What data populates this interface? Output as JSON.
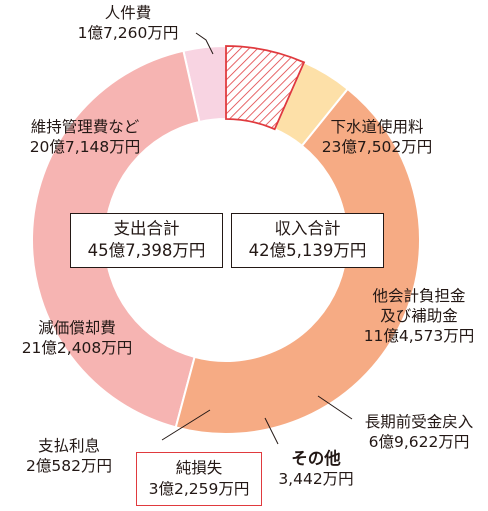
{
  "chart_data": {
    "type": "pie",
    "style": "donut",
    "colors_note": "income segments on right, expenditure segments on left",
    "income": [
      {
        "name": "下水道使用料",
        "value_label": "23億7,502万円",
        "value": 237502,
        "color": "#c8e6f8"
      },
      {
        "name_lines": [
          "他会計負担金",
          "及び補助金"
        ],
        "value_label": "11億4,573万円",
        "value": 114573,
        "color": "#aab4dc"
      },
      {
        "name": "長期前受金戻入",
        "value_label": "6億9,622万円",
        "value": 69622,
        "color": "#b0e0e4"
      },
      {
        "name": "その他",
        "value_label": "3,442万円",
        "value": 3442,
        "color": "#9d9fc8"
      }
    ],
    "expenditure": [
      {
        "name": "人件費",
        "value_label": "1億7,260万円",
        "value": 17260,
        "color": "#f8d4e2"
      },
      {
        "name": "維持管理費など",
        "value_label": "20億7,148万円",
        "value": 207148,
        "color": "#f6b4b2"
      },
      {
        "name": "減価償却費",
        "value_label": "21億2,408万円",
        "value": 212408,
        "color": "#f6ab84"
      },
      {
        "name": "支払利息",
        "value_label": "2億582万円",
        "value": 20582,
        "color": "#fde0a8"
      },
      {
        "name": "純損失",
        "value_label": "3億2,259万円",
        "value": 32259,
        "color": "hatched-red"
      }
    ],
    "totals": {
      "expenditure": {
        "label": "支出合計",
        "value_label": "45億7,398万円"
      },
      "income": {
        "label": "収入合計",
        "value_label": "42億5,139万円"
      }
    }
  }
}
